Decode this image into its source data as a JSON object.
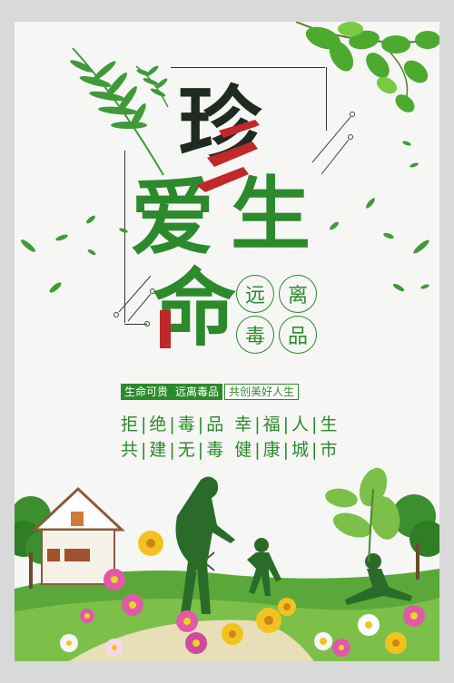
{
  "title": {
    "c1": "珍",
    "c2": "爱",
    "c3": "生",
    "c4": "命"
  },
  "circles": [
    "远",
    "离",
    "毒",
    "品"
  ],
  "banner": {
    "left": "生命可贵",
    "mid": "远离毒品",
    "right": "共创美好人生"
  },
  "slogans": [
    "拒|绝|毒|品 幸|福|人|生",
    "共|建|无|毒 健|康|城|市"
  ],
  "colors": {
    "green": "#2c8a2c",
    "red": "#c0282b",
    "dark": "#1f2a22",
    "bg": "#f6f6f4"
  }
}
